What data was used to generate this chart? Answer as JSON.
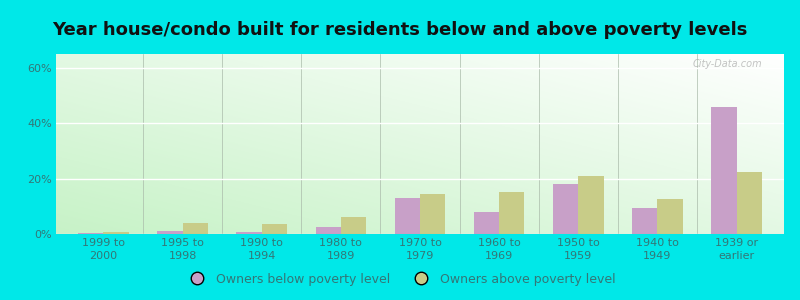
{
  "title": "Year house/condo built for residents below and above poverty levels",
  "categories": [
    "1999 to\n2000",
    "1995 to\n1998",
    "1990 to\n1994",
    "1980 to\n1989",
    "1970 to\n1979",
    "1960 to\n1969",
    "1950 to\n1959",
    "1940 to\n1949",
    "1939 or\nearlier"
  ],
  "below_poverty": [
    0.5,
    1.0,
    0.8,
    2.5,
    13.0,
    8.0,
    18.0,
    9.5,
    46.0
  ],
  "above_poverty": [
    0.8,
    4.0,
    3.5,
    6.0,
    14.5,
    15.0,
    21.0,
    12.5,
    22.5
  ],
  "below_color": "#c8a0c8",
  "above_color": "#c8cc88",
  "outer_background": "#00e8e8",
  "ylim": [
    0,
    65
  ],
  "ytick_labels": [
    "0%",
    "20%",
    "40%",
    "60%"
  ],
  "ytick_values": [
    0,
    20,
    40,
    60
  ],
  "grid_color": "#e0e0e0",
  "legend_below": "Owners below poverty level",
  "legend_above": "Owners above poverty level",
  "title_fontsize": 13,
  "tick_fontsize": 8,
  "legend_fontsize": 9,
  "watermark": "City-Data.com"
}
